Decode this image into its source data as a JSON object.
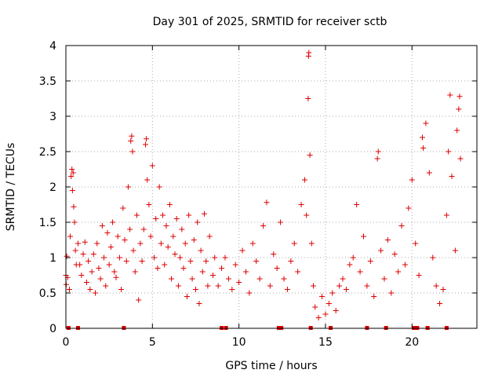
{
  "chart_data": {
    "type": "scatter",
    "title": "Day 301 of 2025, SRMTID for receiver sctb",
    "xlabel": "GPS time / hours",
    "ylabel": "SRMTID / TECUs",
    "xlim": [
      0,
      23.75
    ],
    "ylim": [
      0,
      4
    ],
    "x_ticks": [
      0,
      5,
      10,
      15,
      20
    ],
    "x_tick_labels": [
      "0",
      "5",
      "10",
      "15",
      "20"
    ],
    "y_ticks": [
      0,
      0.5,
      1,
      1.5,
      2,
      2.5,
      3,
      3.5,
      4
    ],
    "y_tick_labels": [
      "0",
      "0.5",
      "1",
      "1.5",
      "2",
      "2.5",
      "3",
      "3.5",
      "4"
    ],
    "grid": true,
    "marker": "plus",
    "color": "#dd0000",
    "series": [
      {
        "name": "SRMTID",
        "points": [
          [
            0.0,
            0.75
          ],
          [
            0.02,
            0.62
          ],
          [
            0.05,
            1.02
          ],
          [
            0.1,
            0.72
          ],
          [
            0.2,
            0.55
          ],
          [
            0.25,
            1.3
          ],
          [
            0.3,
            2.15
          ],
          [
            0.35,
            2.25
          ],
          [
            0.38,
            1.95
          ],
          [
            0.42,
            2.2
          ],
          [
            0.45,
            1.72
          ],
          [
            0.5,
            1.5
          ],
          [
            0.55,
            1.1
          ],
          [
            0.6,
            0.9
          ],
          [
            0.7,
            1.2
          ],
          [
            0.8,
            0.9
          ],
          [
            0.9,
            0.75
          ],
          [
            1.0,
            1.05
          ],
          [
            1.1,
            1.22
          ],
          [
            1.2,
            0.65
          ],
          [
            1.3,
            0.95
          ],
          [
            1.4,
            0.55
          ],
          [
            1.5,
            0.8
          ],
          [
            1.6,
            1.05
          ],
          [
            1.7,
            0.5
          ],
          [
            1.8,
            1.2
          ],
          [
            1.9,
            0.85
          ],
          [
            2.0,
            0.7
          ],
          [
            2.1,
            1.45
          ],
          [
            2.2,
            1.0
          ],
          [
            2.3,
            0.6
          ],
          [
            2.4,
            1.35
          ],
          [
            2.5,
            0.9
          ],
          [
            2.6,
            1.15
          ],
          [
            2.7,
            1.5
          ],
          [
            2.8,
            0.8
          ],
          [
            2.9,
            0.72
          ],
          [
            3.0,
            1.3
          ],
          [
            3.1,
            1.0
          ],
          [
            3.2,
            0.55
          ],
          [
            3.3,
            1.7
          ],
          [
            3.4,
            1.25
          ],
          [
            3.5,
            0.95
          ],
          [
            3.6,
            2.0
          ],
          [
            3.7,
            1.4
          ],
          [
            3.75,
            2.65
          ],
          [
            3.8,
            2.72
          ],
          [
            3.85,
            2.5
          ],
          [
            3.9,
            1.1
          ],
          [
            4.0,
            0.8
          ],
          [
            4.1,
            1.6
          ],
          [
            4.2,
            0.4
          ],
          [
            4.3,
            1.2
          ],
          [
            4.4,
            0.95
          ],
          [
            4.5,
            1.4
          ],
          [
            4.6,
            2.6
          ],
          [
            4.65,
            2.68
          ],
          [
            4.7,
            2.1
          ],
          [
            4.8,
            1.75
          ],
          [
            4.9,
            1.3
          ],
          [
            5.0,
            2.3
          ],
          [
            5.1,
            1.0
          ],
          [
            5.2,
            1.55
          ],
          [
            5.3,
            0.85
          ],
          [
            5.4,
            2.0
          ],
          [
            5.5,
            1.2
          ],
          [
            5.6,
            1.6
          ],
          [
            5.7,
            0.9
          ],
          [
            5.8,
            1.45
          ],
          [
            5.9,
            1.15
          ],
          [
            6.0,
            1.75
          ],
          [
            6.1,
            0.7
          ],
          [
            6.2,
            1.3
          ],
          [
            6.3,
            1.05
          ],
          [
            6.4,
            1.55
          ],
          [
            6.5,
            0.6
          ],
          [
            6.6,
            1.0
          ],
          [
            6.7,
            1.4
          ],
          [
            6.8,
            0.85
          ],
          [
            6.9,
            1.2
          ],
          [
            7.0,
            0.45
          ],
          [
            7.1,
            1.6
          ],
          [
            7.2,
            0.95
          ],
          [
            7.3,
            0.7
          ],
          [
            7.4,
            1.25
          ],
          [
            7.5,
            0.55
          ],
          [
            7.6,
            1.5
          ],
          [
            7.7,
            0.35
          ],
          [
            7.8,
            1.1
          ],
          [
            7.9,
            0.8
          ],
          [
            8.0,
            1.62
          ],
          [
            8.1,
            0.95
          ],
          [
            8.2,
            0.6
          ],
          [
            8.3,
            1.3
          ],
          [
            8.5,
            0.75
          ],
          [
            8.6,
            1.0
          ],
          [
            8.8,
            0.6
          ],
          [
            9.0,
            0.85
          ],
          [
            9.2,
            1.0
          ],
          [
            9.4,
            0.7
          ],
          [
            9.6,
            0.55
          ],
          [
            9.8,
            0.9
          ],
          [
            10.0,
            0.65
          ],
          [
            10.2,
            1.1
          ],
          [
            10.4,
            0.8
          ],
          [
            10.6,
            0.5
          ],
          [
            10.8,
            1.2
          ],
          [
            11.0,
            0.95
          ],
          [
            11.2,
            0.7
          ],
          [
            11.4,
            1.45
          ],
          [
            11.6,
            1.78
          ],
          [
            11.8,
            0.6
          ],
          [
            12.0,
            1.05
          ],
          [
            12.2,
            0.85
          ],
          [
            12.4,
            1.5
          ],
          [
            12.6,
            0.7
          ],
          [
            12.8,
            0.55
          ],
          [
            13.0,
            0.95
          ],
          [
            13.2,
            1.2
          ],
          [
            13.4,
            0.8
          ],
          [
            13.6,
            1.75
          ],
          [
            13.8,
            2.1
          ],
          [
            13.9,
            1.6
          ],
          [
            14.0,
            3.25
          ],
          [
            14.02,
            3.85
          ],
          [
            14.04,
            3.9
          ],
          [
            14.1,
            2.45
          ],
          [
            14.2,
            1.2
          ],
          [
            14.3,
            0.6
          ],
          [
            14.4,
            0.3
          ],
          [
            14.6,
            0.15
          ],
          [
            14.8,
            0.45
          ],
          [
            15.0,
            0.2
          ],
          [
            15.2,
            0.35
          ],
          [
            15.4,
            0.5
          ],
          [
            15.6,
            0.25
          ],
          [
            15.8,
            0.6
          ],
          [
            16.0,
            0.7
          ],
          [
            16.2,
            0.55
          ],
          [
            16.4,
            0.9
          ],
          [
            16.6,
            1.0
          ],
          [
            16.8,
            1.75
          ],
          [
            17.0,
            0.8
          ],
          [
            17.2,
            1.3
          ],
          [
            17.4,
            0.6
          ],
          [
            17.6,
            0.95
          ],
          [
            17.8,
            0.45
          ],
          [
            18.0,
            2.4
          ],
          [
            18.05,
            2.5
          ],
          [
            18.2,
            1.1
          ],
          [
            18.4,
            0.7
          ],
          [
            18.6,
            1.25
          ],
          [
            18.8,
            0.5
          ],
          [
            19.0,
            1.05
          ],
          [
            19.2,
            0.8
          ],
          [
            19.4,
            1.45
          ],
          [
            19.6,
            0.9
          ],
          [
            19.8,
            1.7
          ],
          [
            20.0,
            2.1
          ],
          [
            20.2,
            1.2
          ],
          [
            20.4,
            0.75
          ],
          [
            20.6,
            2.7
          ],
          [
            20.65,
            2.55
          ],
          [
            20.8,
            2.9
          ],
          [
            21.0,
            2.2
          ],
          [
            21.2,
            1.0
          ],
          [
            21.4,
            0.6
          ],
          [
            21.6,
            0.35
          ],
          [
            21.8,
            0.55
          ],
          [
            22.0,
            1.6
          ],
          [
            22.1,
            2.5
          ],
          [
            22.2,
            3.3
          ],
          [
            22.3,
            2.15
          ],
          [
            22.5,
            1.1
          ],
          [
            22.6,
            2.8
          ],
          [
            22.7,
            3.1
          ],
          [
            22.75,
            3.28
          ],
          [
            22.8,
            2.4
          ]
        ]
      }
    ],
    "zero_markers_x": [
      0.15,
      0.7,
      3.35,
      9.0,
      9.25,
      12.3,
      12.45,
      14.15,
      15.3,
      17.4,
      18.5,
      20.1,
      20.3,
      20.9,
      22.0
    ]
  }
}
